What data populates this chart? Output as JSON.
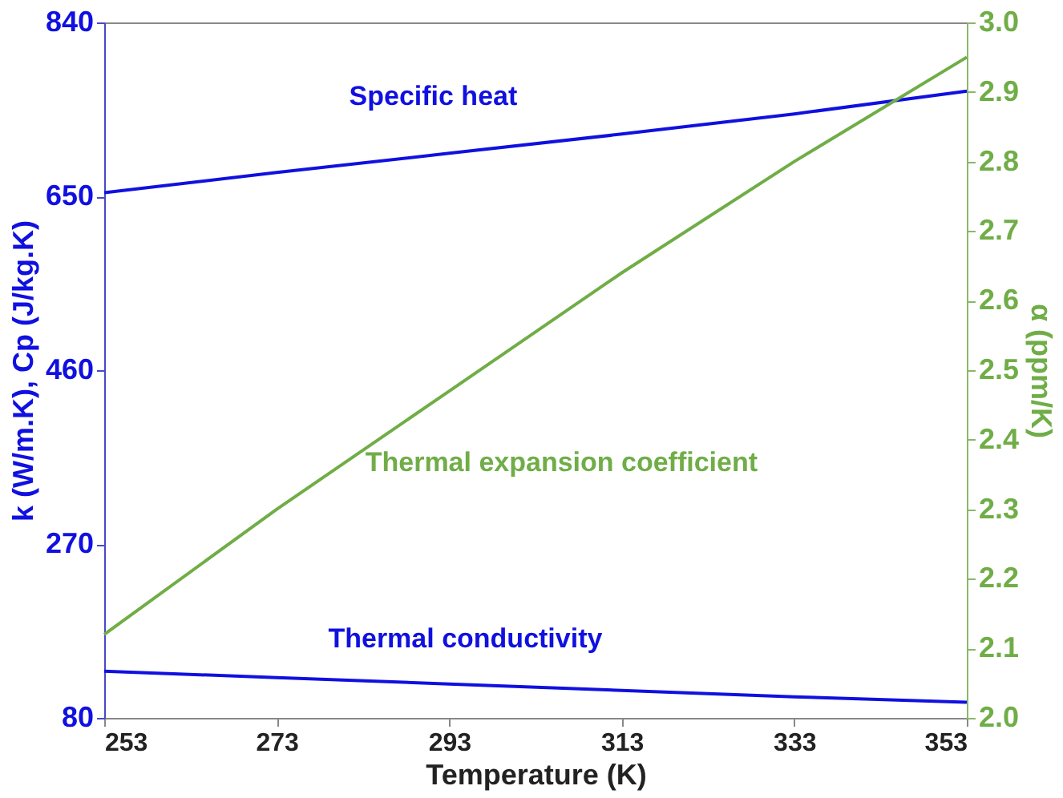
{
  "chart_data": {
    "type": "line",
    "xlabel": "Temperature (K)",
    "ylabel": "k (W/m.K), Cp (J/kg.K)",
    "y2label": "α (ppm/K)",
    "x": [
      253,
      273,
      293,
      313,
      333,
      353
    ],
    "series": [
      {
        "color": "#1010e0",
        "values": [
          654,
          676,
          697,
          718,
          740,
          765
        ]
      },
      {
        "color": "#1010e0",
        "values": [
          131,
          124,
          117,
          110,
          103,
          97
        ]
      },
      {
        "color": "#70ad47",
        "axis": "y2",
        "values": [
          2.12,
          2.3,
          2.47,
          2.64,
          2.8,
          2.95
        ]
      }
    ],
    "xlim": [
      253,
      353
    ],
    "xticks": [
      253,
      273,
      293,
      313,
      333,
      353
    ],
    "ylim": [
      80,
      840
    ],
    "yticks": [
      80,
      270,
      460,
      650,
      840
    ],
    "y2lim": [
      2.0,
      3.0
    ],
    "y2ticks": [
      {
        "value": 2,
        "label": "2.0"
      },
      2.1,
      2.2,
      2.3,
      2.4,
      2.5,
      2.6,
      2.7,
      2.8,
      2.9,
      {
        "value": 3,
        "label": "3.0"
      }
    ],
    "annotations": [
      "Specific heat",
      "Thermal expansion coefficient",
      "Thermal conductivity"
    ],
    "grid": false,
    "marker": "none",
    "line_style": "solid"
  }
}
